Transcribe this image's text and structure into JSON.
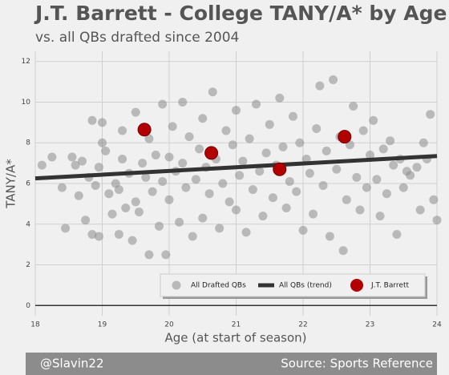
{
  "chart_data": {
    "type": "scatter",
    "title": "J.T. Barrett - College TANY/A* by Age",
    "subtitle": "vs. all QBs drafted since 2004",
    "x_label": "Age (at start of season)",
    "y_label": "TANY/A*",
    "xlim": [
      18,
      24
    ],
    "xticks": [
      18,
      19,
      20,
      21,
      22,
      23,
      24
    ],
    "ylim": [
      -0.5,
      12.5
    ],
    "yticks": [
      0,
      2,
      4,
      6,
      8,
      10,
      12
    ],
    "grid": true,
    "legend": "lower right",
    "series": [
      {
        "name": "All Drafted QBs",
        "mode": "markers",
        "color": "#8c8c8c",
        "x": [
          18.1,
          18.25,
          18.4,
          18.45,
          18.55,
          18.6,
          18.65,
          18.7,
          18.75,
          18.8,
          18.85,
          18.85,
          18.9,
          18.95,
          18.95,
          19.0,
          19.0,
          19.05,
          19.1,
          19.15,
          19.2,
          19.25,
          19.25,
          19.3,
          19.3,
          19.35,
          19.4,
          19.45,
          19.5,
          19.5,
          19.55,
          19.6,
          19.65,
          19.7,
          19.7,
          19.75,
          19.8,
          19.85,
          19.9,
          19.9,
          19.95,
          20.0,
          20.0,
          20.05,
          20.1,
          20.15,
          20.2,
          20.2,
          20.25,
          20.3,
          20.35,
          20.4,
          20.45,
          20.5,
          20.5,
          20.55,
          20.6,
          20.65,
          20.7,
          20.75,
          20.8,
          20.85,
          20.9,
          20.95,
          21.0,
          21.0,
          21.05,
          21.1,
          21.15,
          21.2,
          21.25,
          21.3,
          21.35,
          21.4,
          21.45,
          21.5,
          21.55,
          21.6,
          21.65,
          21.7,
          21.75,
          21.8,
          21.85,
          21.9,
          21.95,
          22.0,
          22.05,
          22.1,
          22.15,
          22.2,
          22.25,
          22.3,
          22.35,
          22.4,
          22.45,
          22.5,
          22.55,
          22.6,
          22.65,
          22.7,
          22.75,
          22.8,
          22.85,
          22.9,
          22.95,
          23.0,
          23.05,
          23.1,
          23.15,
          23.2,
          23.25,
          23.3,
          23.35,
          23.4,
          23.45,
          23.5,
          23.55,
          23.6,
          23.7,
          23.75,
          23.8,
          23.9,
          23.95,
          24.0,
          23.85
        ],
        "values": [
          6.9,
          7.3,
          5.8,
          3.8,
          7.3,
          6.9,
          5.4,
          7.1,
          4.2,
          6.3,
          3.5,
          9.1,
          5.9,
          3.4,
          6.8,
          8.0,
          9.0,
          7.6,
          5.5,
          4.5,
          6.0,
          3.5,
          5.7,
          7.2,
          8.6,
          4.8,
          6.5,
          3.2,
          9.5,
          5.1,
          4.6,
          7.0,
          6.3,
          2.5,
          8.2,
          5.6,
          7.4,
          3.9,
          9.9,
          6.1,
          2.5,
          7.3,
          5.2,
          8.8,
          6.6,
          4.1,
          10.0,
          7.0,
          5.8,
          8.3,
          3.4,
          6.2,
          7.7,
          4.3,
          9.2,
          6.8,
          5.5,
          10.5,
          7.2,
          3.8,
          6.0,
          8.6,
          5.1,
          7.9,
          4.7,
          9.6,
          6.4,
          7.1,
          3.6,
          8.2,
          5.7,
          9.9,
          6.6,
          4.4,
          7.5,
          8.9,
          5.3,
          6.9,
          10.2,
          7.8,
          4.8,
          6.1,
          9.3,
          5.6,
          8.0,
          3.7,
          7.2,
          6.5,
          4.5,
          8.7,
          10.8,
          5.9,
          7.6,
          3.4,
          11.1,
          6.7,
          8.3,
          2.7,
          5.2,
          7.9,
          9.8,
          6.3,
          4.7,
          8.6,
          5.8,
          7.4,
          9.1,
          6.2,
          4.4,
          7.7,
          5.5,
          8.1,
          6.9,
          3.5,
          7.2,
          5.8,
          6.6,
          6.4,
          6.8,
          4.7,
          8.0,
          9.4,
          5.2,
          4.2,
          7.2
        ]
      },
      {
        "name": "All QBs (trend)",
        "mode": "line",
        "color": "#333333",
        "x": [
          18,
          24
        ],
        "values": [
          6.25,
          7.35
        ]
      },
      {
        "name": "J.T. Barrett",
        "mode": "markers",
        "color": "#b20000",
        "x": [
          19.63,
          20.63,
          21.65,
          22.62
        ],
        "values": [
          8.65,
          7.5,
          6.7,
          8.3
        ]
      }
    ]
  },
  "footer": {
    "credit": "@Slavin22",
    "source": "Source: Sports Reference"
  }
}
